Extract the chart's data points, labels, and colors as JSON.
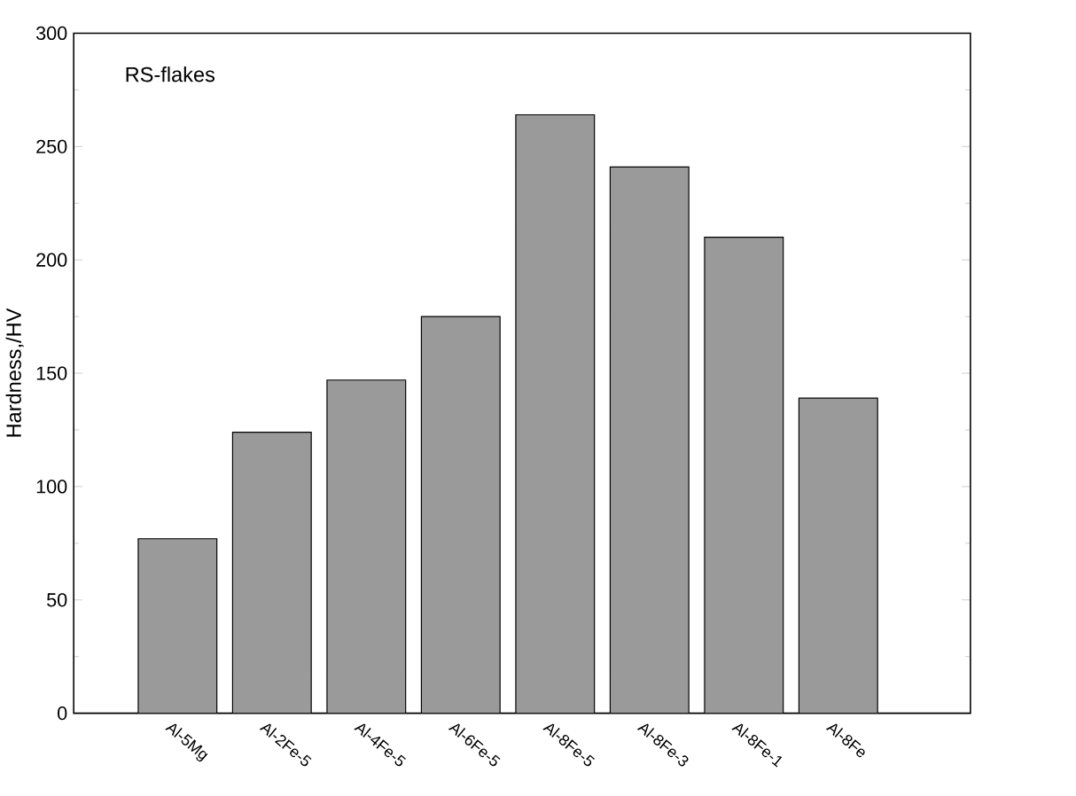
{
  "chart_data": {
    "type": "bar",
    "ylabel": "Hardness,/HV",
    "annotations": [
      "RS-flakes"
    ],
    "categories": [
      "Al-5Mg",
      "Al-2Fe-5",
      "Al-4Fe-5",
      "Al-6Fe-5",
      "Al-8Fe-5",
      "Al-8Fe-3",
      "Al-8Fe-1",
      "Al-8Fe"
    ],
    "values": [
      77,
      124,
      147,
      175,
      264,
      241,
      210,
      139
    ],
    "color": "#9a9a9a",
    "ylim": [
      0,
      300
    ],
    "yticks": [
      0,
      50,
      100,
      150,
      200,
      250,
      300
    ],
    "grid": false
  }
}
